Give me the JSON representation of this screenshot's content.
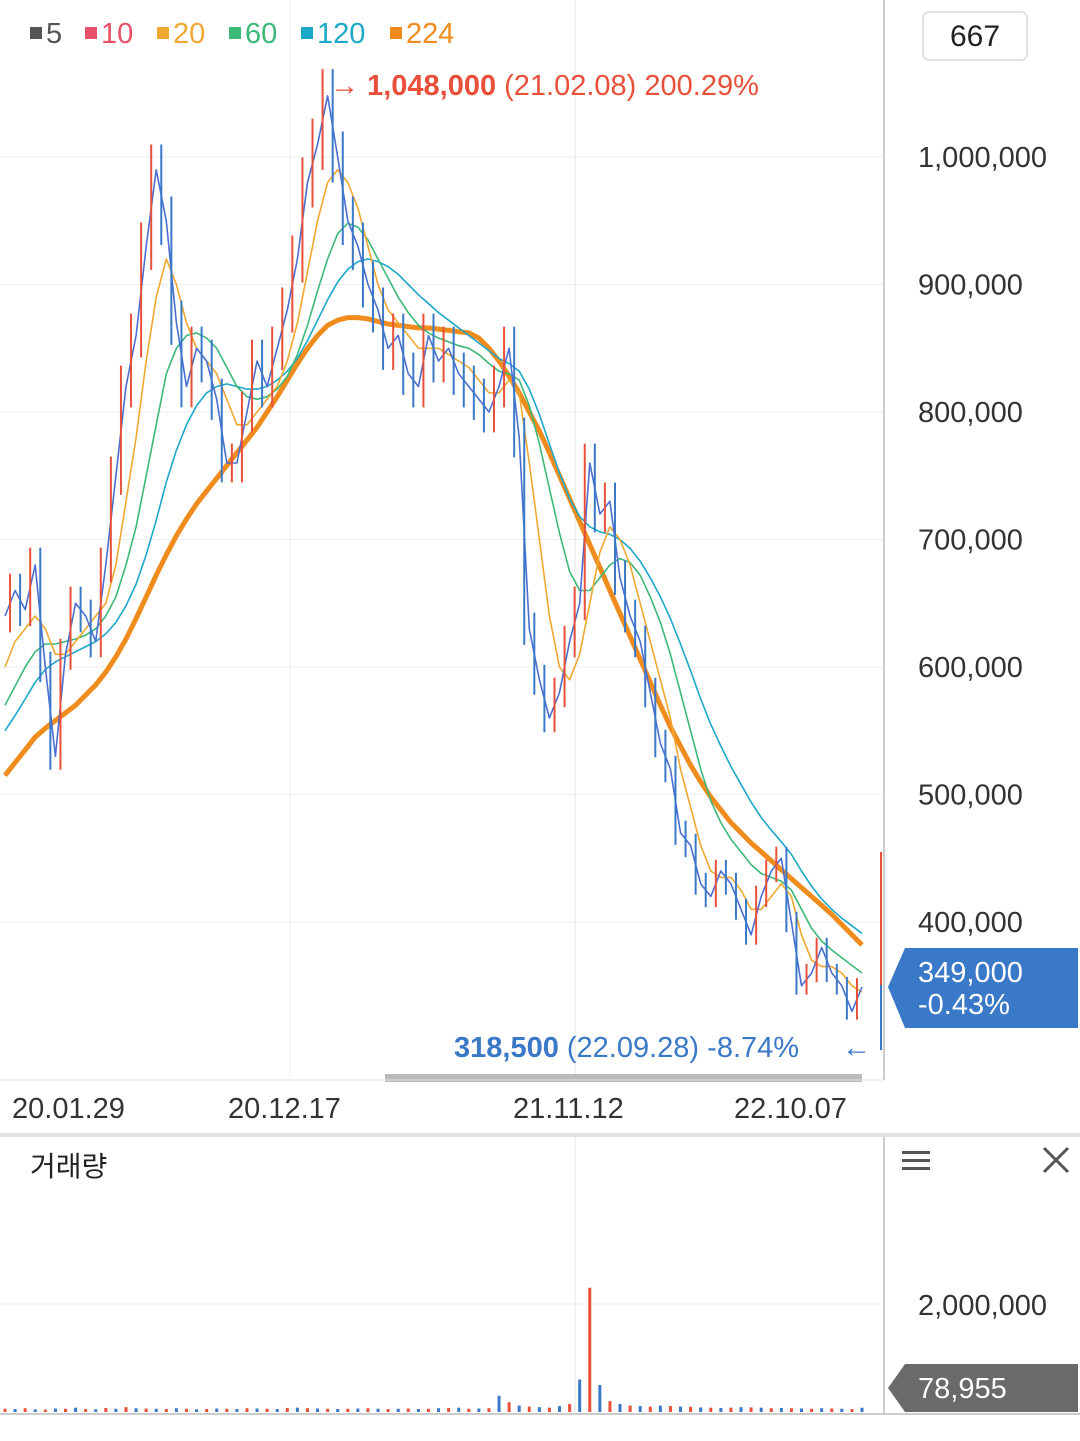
{
  "legend": [
    {
      "label": "5",
      "color": "#555555"
    },
    {
      "label": "10",
      "color": "#e8506a"
    },
    {
      "label": "20",
      "color": "#f0a830"
    },
    {
      "label": "60",
      "color": "#3cb878"
    },
    {
      "label": "120",
      "color": "#1ca8c8"
    },
    {
      "label": "224",
      "color": "#f08c1e"
    }
  ],
  "zoom_box": "667",
  "high_annotation": {
    "arrow": "→",
    "value": "1,048,000",
    "date": "(21.02.08)",
    "pct": "200.29%",
    "color": "#e8503a"
  },
  "low_annotation": {
    "value": "318,500",
    "date": "(22.09.28)",
    "pct": "-8.74%",
    "arrow": "←",
    "color": "#3a78c8"
  },
  "current_price": {
    "value": "349,000",
    "change": "-0.43%",
    "bg": "#3a78c8"
  },
  "volume_panel": {
    "title": "거래량",
    "current": "78,955",
    "menu_icon": "hamburger-icon",
    "close_icon": "close-icon"
  },
  "chart_data": [
    {
      "type": "line",
      "x_ticks": [
        "20.01.29",
        "20.12.17",
        "21.11.12",
        "22.10.07"
      ],
      "y_ticks": [
        "1,000,000",
        "900,000",
        "800,000",
        "700,000",
        "600,000",
        "500,000",
        "400,000"
      ],
      "ylim": [
        320000,
        1060000
      ],
      "series": [
        {
          "name": "price",
          "color": "#4a6fd0",
          "values": [
            640000,
            660000,
            645000,
            680000,
            600000,
            530000,
            610000,
            650000,
            640000,
            620000,
            680000,
            750000,
            820000,
            860000,
            930000,
            990000,
            950000,
            870000,
            820000,
            850000,
            840000,
            810000,
            760000,
            760000,
            800000,
            840000,
            820000,
            850000,
            880000,
            920000,
            980000,
            1010000,
            1048000,
            1000000,
            950000,
            930000,
            900000,
            880000,
            850000,
            860000,
            830000,
            820000,
            860000,
            840000,
            850000,
            830000,
            820000,
            810000,
            800000,
            820000,
            850000,
            780000,
            630000,
            590000,
            560000,
            580000,
            620000,
            650000,
            760000,
            720000,
            730000,
            670000,
            640000,
            620000,
            580000,
            540000,
            520000,
            470000,
            460000,
            430000,
            420000,
            440000,
            430000,
            410000,
            390000,
            420000,
            440000,
            450000,
            400000,
            350000,
            360000,
            380000,
            360000,
            350000,
            330000,
            349000
          ]
        },
        {
          "name": "ma20",
          "color": "#f0a830",
          "values": [
            600000,
            620000,
            630000,
            640000,
            630000,
            610000,
            610000,
            620000,
            630000,
            640000,
            650000,
            680000,
            730000,
            780000,
            840000,
            890000,
            920000,
            900000,
            870000,
            850000,
            840000,
            830000,
            810000,
            790000,
            790000,
            800000,
            810000,
            820000,
            840000,
            870000,
            910000,
            950000,
            980000,
            990000,
            980000,
            960000,
            930000,
            900000,
            880000,
            870000,
            860000,
            850000,
            850000,
            850000,
            845000,
            840000,
            835000,
            825000,
            815000,
            815000,
            825000,
            815000,
            760000,
            700000,
            640000,
            600000,
            590000,
            610000,
            650000,
            690000,
            710000,
            700000,
            680000,
            650000,
            620000,
            590000,
            560000,
            520000,
            490000,
            460000,
            440000,
            435000,
            435000,
            425000,
            410000,
            410000,
            420000,
            430000,
            420000,
            390000,
            370000,
            365000,
            365000,
            360000,
            350000,
            345000
          ]
        },
        {
          "name": "ma60",
          "color": "#3cb878",
          "values": [
            570000,
            585000,
            600000,
            612000,
            618000,
            618000,
            620000,
            622000,
            625000,
            630000,
            640000,
            655000,
            680000,
            710000,
            750000,
            790000,
            830000,
            850000,
            860000,
            862000,
            858000,
            850000,
            835000,
            820000,
            812000,
            810000,
            812000,
            818000,
            828000,
            845000,
            868000,
            895000,
            920000,
            940000,
            948000,
            945000,
            935000,
            920000,
            905000,
            890000,
            878000,
            868000,
            862000,
            858000,
            855000,
            852000,
            850000,
            845000,
            838000,
            832000,
            830000,
            825000,
            805000,
            775000,
            740000,
            705000,
            675000,
            660000,
            660000,
            670000,
            680000,
            685000,
            682000,
            672000,
            655000,
            635000,
            610000,
            580000,
            550000,
            520000,
            495000,
            478000,
            465000,
            455000,
            445000,
            438000,
            435000,
            432000,
            425000,
            410000,
            395000,
            385000,
            378000,
            372000,
            366000,
            360000
          ]
        },
        {
          "name": "ma120",
          "color": "#1ca8c8",
          "values": [
            550000,
            562000,
            575000,
            588000,
            598000,
            604000,
            608000,
            612000,
            616000,
            620000,
            626000,
            635000,
            648000,
            665000,
            688000,
            715000,
            745000,
            770000,
            790000,
            805000,
            815000,
            820000,
            822000,
            820000,
            818000,
            818000,
            820000,
            825000,
            832000,
            842000,
            856000,
            872000,
            888000,
            902000,
            912000,
            918000,
            920000,
            918000,
            914000,
            908000,
            900000,
            892000,
            885000,
            878000,
            872000,
            866000,
            860000,
            854000,
            848000,
            842000,
            838000,
            832000,
            818000,
            798000,
            775000,
            752000,
            732000,
            718000,
            710000,
            706000,
            704000,
            700000,
            693000,
            683000,
            670000,
            655000,
            638000,
            618000,
            597000,
            575000,
            555000,
            538000,
            522000,
            508000,
            494000,
            482000,
            472000,
            463000,
            453000,
            440000,
            428000,
            418000,
            410000,
            403000,
            397000,
            391000
          ]
        },
        {
          "name": "ma224",
          "color": "#f08c1e",
          "values": [
            515000,
            525000,
            535000,
            545000,
            552000,
            558000,
            564000,
            570000,
            578000,
            586000,
            596000,
            608000,
            622000,
            638000,
            655000,
            672000,
            688000,
            703000,
            716000,
            728000,
            738000,
            748000,
            758000,
            768000,
            778000,
            788000,
            800000,
            812000,
            825000,
            838000,
            850000,
            860000,
            868000,
            872000,
            874000,
            874000,
            873000,
            871000,
            869000,
            868000,
            867000,
            866000,
            866000,
            865000,
            864000,
            863000,
            862000,
            858000,
            850000,
            840000,
            828000,
            815000,
            800000,
            785000,
            768000,
            750000,
            732000,
            714000,
            696000,
            678000,
            660000,
            642000,
            624000,
            606000,
            588000,
            570000,
            553000,
            538000,
            523000,
            510000,
            498000,
            488000,
            478000,
            470000,
            462000,
            455000,
            448000,
            441000,
            434000,
            427000,
            420000,
            413000,
            406000,
            398000,
            390000,
            382000
          ]
        }
      ]
    },
    {
      "type": "bar",
      "y_ticks": [
        "2,000,000"
      ],
      "ylim": [
        0,
        2600000
      ],
      "values": [
        60000,
        55000,
        70000,
        50000,
        45000,
        65000,
        60000,
        80000,
        55000,
        50000,
        75000,
        60000,
        90000,
        70000,
        65000,
        60000,
        55000,
        70000,
        60000,
        50000,
        55000,
        65000,
        60000,
        55000,
        70000,
        65000,
        60000,
        55000,
        75000,
        80000,
        70000,
        65000,
        60000,
        55000,
        60000,
        65000,
        70000,
        60000,
        55000,
        60000,
        65000,
        55000,
        60000,
        70000,
        75000,
        80000,
        60000,
        65000,
        70000,
        300000,
        180000,
        120000,
        100000,
        90000,
        80000,
        110000,
        150000,
        600000,
        2300000,
        500000,
        200000,
        150000,
        120000,
        110000,
        100000,
        120000,
        110000,
        100000,
        95000,
        85000,
        80000,
        75000,
        80000,
        90000,
        85000,
        80000,
        70000,
        75000,
        70000,
        65000,
        60000,
        70000,
        65000,
        60000,
        55000,
        78955
      ]
    }
  ]
}
